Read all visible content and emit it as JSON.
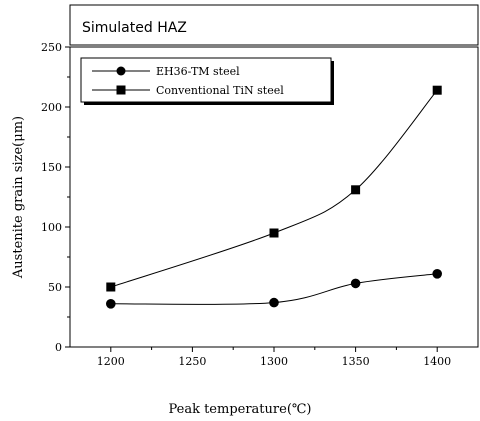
{
  "chart_data": {
    "type": "line",
    "title": "Simulated HAZ",
    "xlabel": "Peak temperature(℃)",
    "ylabel": "Austenite grain size(μm)",
    "xlim": [
      1175,
      1425
    ],
    "ylim": [
      0,
      250
    ],
    "xticks": [
      1200,
      1250,
      1300,
      1350,
      1400
    ],
    "yticks": [
      0,
      50,
      100,
      150,
      200,
      250
    ],
    "grid": false,
    "legend_position": "top-left",
    "series": [
      {
        "name": "EH36-TM steel",
        "marker": "circle",
        "x": [
          1200,
          1300,
          1350,
          1400
        ],
        "y": [
          36,
          37,
          53,
          61
        ]
      },
      {
        "name": "Conventional TiN steel",
        "marker": "square",
        "x": [
          1200,
          1300,
          1350,
          1400
        ],
        "y": [
          50,
          95,
          131,
          214
        ]
      }
    ]
  }
}
